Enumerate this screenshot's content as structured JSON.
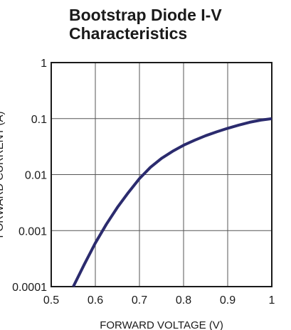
{
  "chart_data": {
    "type": "line",
    "title_lines": [
      "Bootstrap Diode I-V",
      "Characteristics"
    ],
    "xlabel": "FORWARD VOLTAGE (V)",
    "ylabel": "FORWARD CURRENT (A)",
    "x_scale": "linear",
    "y_scale": "log",
    "xlim": [
      0.5,
      1
    ],
    "ylim": [
      0.0001,
      1
    ],
    "x_ticks": [
      0.5,
      0.6,
      0.7,
      0.8,
      0.9,
      1
    ],
    "x_tick_labels": [
      "0.5",
      "0.6",
      "0.7",
      "0.8",
      "0.9",
      "1"
    ],
    "y_ticks": [
      0.0001,
      0.001,
      0.01,
      0.1,
      1
    ],
    "y_tick_labels": [
      "0.0001",
      "0.001",
      "0.01",
      "0.1",
      "1"
    ],
    "grid": true,
    "legend": "none",
    "line_color": "#2b2b6e",
    "grid_color": "#555555",
    "series": [
      {
        "x": [
          0.55,
          0.575,
          0.6,
          0.625,
          0.65,
          0.675,
          0.7,
          0.725,
          0.75,
          0.775,
          0.8,
          0.825,
          0.85,
          0.875,
          0.9,
          0.925,
          0.95,
          0.975,
          1.0
        ],
        "y": [
          0.0001,
          0.00025,
          0.0006,
          0.0013,
          0.0026,
          0.0048,
          0.0085,
          0.0135,
          0.0195,
          0.026,
          0.0335,
          0.041,
          0.0495,
          0.058,
          0.067,
          0.0765,
          0.086,
          0.094,
          0.1
        ]
      }
    ]
  }
}
